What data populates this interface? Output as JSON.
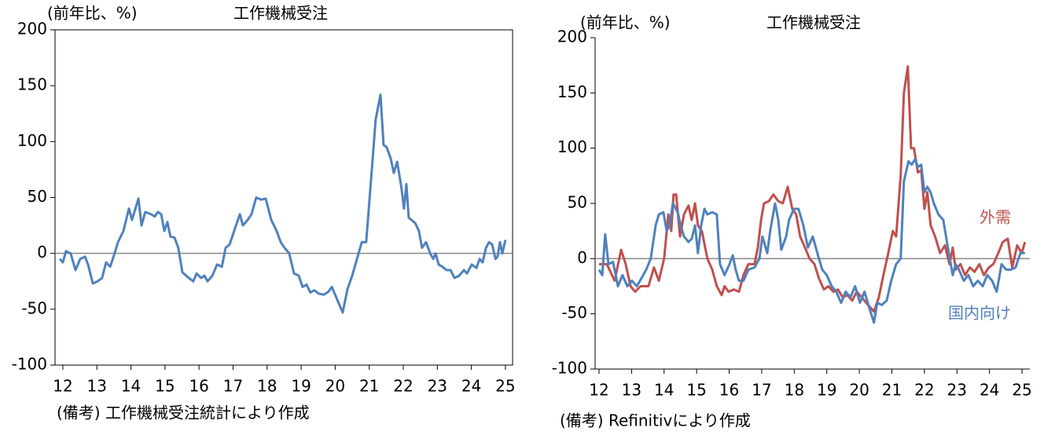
{
  "chart_data": [
    {
      "type": "line",
      "title": "工作機械受注",
      "y_label": "(前年比、%)",
      "note": "(備考) 工作機械受注統計により作成",
      "xlim": [
        11.77,
        25.21
      ],
      "xticks": [
        12,
        13,
        14,
        15,
        16,
        17,
        18,
        19,
        20,
        21,
        22,
        23,
        24,
        25
      ],
      "ylim": [
        -100,
        200
      ],
      "yticks": [
        -100,
        -50,
        0,
        50,
        100,
        150,
        200
      ],
      "frame": true,
      "series": [
        {
          "color": "#4f81bd",
          "x": [
            11.91,
            12.0,
            12.09,
            12.23,
            12.37,
            12.51,
            12.65,
            12.74,
            12.88,
            13.02,
            13.15,
            13.27,
            13.39,
            13.52,
            13.62,
            13.78,
            13.94,
            14.03,
            14.22,
            14.31,
            14.42,
            14.59,
            14.7,
            14.79,
            14.89,
            14.98,
            15.07,
            15.16,
            15.28,
            15.39,
            15.51,
            15.7,
            15.83,
            15.93,
            16.06,
            16.16,
            16.25,
            16.39,
            16.53,
            16.67,
            16.78,
            16.9,
            17.03,
            17.2,
            17.29,
            17.43,
            17.54,
            17.68,
            17.82,
            17.96,
            18.12,
            18.28,
            18.4,
            18.51,
            18.65,
            18.79,
            18.93,
            19.04,
            19.16,
            19.27,
            19.39,
            19.51,
            19.67,
            19.81,
            19.9,
            20.04,
            20.22,
            20.36,
            20.5,
            20.64,
            20.78,
            20.91,
            21.05,
            21.19,
            21.33,
            21.42,
            21.51,
            21.63,
            21.72,
            21.82,
            21.94,
            22.02,
            22.09,
            22.16,
            22.35,
            22.46,
            22.55,
            22.67,
            22.79,
            22.88,
            22.95,
            23.04,
            23.15,
            23.27,
            23.39,
            23.5,
            23.64,
            23.78,
            23.87,
            24.01,
            24.15,
            24.24,
            24.33,
            24.43,
            24.52,
            24.61,
            24.71,
            24.77,
            24.84,
            24.91,
            25.0
          ],
          "values": [
            -5,
            -8,
            2,
            0,
            -15,
            -5,
            -3,
            -10,
            -27,
            -25,
            -22,
            -8,
            -12,
            0,
            10,
            20,
            40,
            30,
            49,
            25,
            37,
            35,
            33,
            37,
            35,
            20,
            28,
            15,
            14,
            5,
            -17,
            -22,
            -25,
            -18,
            -22,
            -20,
            -25,
            -20,
            -10,
            -12,
            5,
            8,
            20,
            35,
            25,
            30,
            35,
            50,
            48,
            49,
            30,
            20,
            10,
            5,
            0,
            -18,
            -20,
            -30,
            -28,
            -35,
            -33,
            -36,
            -37,
            -34,
            -30,
            -40,
            -53,
            -32,
            -20,
            -5,
            10,
            10,
            65,
            120,
            142,
            97,
            95,
            85,
            72,
            82,
            60,
            40,
            62,
            32,
            27,
            20,
            5,
            10,
            0,
            -5,
            0,
            -10,
            -12,
            -15,
            -15,
            -22,
            -20,
            -15,
            -18,
            -10,
            -13,
            -5,
            -8,
            5,
            10,
            8,
            -5,
            -3,
            10,
            0,
            12
          ]
        }
      ]
    },
    {
      "type": "line",
      "title": "工作機械受注",
      "y_label": "(前年比、%)",
      "note": "(備考) Refinitivにより作成",
      "xlim": [
        11.88,
        25.24
      ],
      "xticks": [
        12,
        13,
        14,
        15,
        16,
        17,
        18,
        19,
        20,
        21,
        22,
        23,
        24,
        25
      ],
      "ylim": [
        -100,
        200
      ],
      "yticks": [
        -100,
        -50,
        0,
        50,
        100,
        150,
        200
      ],
      "frame": false,
      "series": [
        {
          "name": "外需",
          "color": "#c0504d",
          "x": [
            12.0,
            12.24,
            12.48,
            12.68,
            12.82,
            12.97,
            13.11,
            13.28,
            13.52,
            13.69,
            13.84,
            14.0,
            14.13,
            14.22,
            14.29,
            14.37,
            14.49,
            14.61,
            14.75,
            14.85,
            14.95,
            15.04,
            15.16,
            15.33,
            15.48,
            15.62,
            15.77,
            15.86,
            15.98,
            16.15,
            16.3,
            16.44,
            16.59,
            16.78,
            16.88,
            16.98,
            17.07,
            17.22,
            17.36,
            17.51,
            17.65,
            17.8,
            17.94,
            18.06,
            18.18,
            18.33,
            18.47,
            18.62,
            18.76,
            18.91,
            19.05,
            19.2,
            19.34,
            19.49,
            19.63,
            19.78,
            19.92,
            20.07,
            20.21,
            20.36,
            20.45,
            20.6,
            20.74,
            20.89,
            21.03,
            21.13,
            21.27,
            21.37,
            21.49,
            21.59,
            21.68,
            21.8,
            21.9,
            22.0,
            22.09,
            22.19,
            22.33,
            22.48,
            22.63,
            22.77,
            22.87,
            22.96,
            23.11,
            23.25,
            23.4,
            23.54,
            23.69,
            23.83,
            23.98,
            24.12,
            24.27,
            24.41,
            24.56,
            24.7,
            24.85,
            24.99,
            25.09
          ],
          "values": [
            -5,
            -5,
            -20,
            8,
            -5,
            -25,
            -30,
            -25,
            -25,
            -8,
            -20,
            0,
            40,
            25,
            58,
            58,
            20,
            40,
            48,
            35,
            50,
            30,
            25,
            0,
            -10,
            -25,
            -33,
            -25,
            -30,
            -28,
            -30,
            -15,
            -5,
            -5,
            10,
            35,
            50,
            52,
            58,
            52,
            50,
            65,
            45,
            40,
            20,
            10,
            0,
            -5,
            -18,
            -28,
            -25,
            -30,
            -28,
            -35,
            -33,
            -38,
            -30,
            -35,
            -40,
            -45,
            -48,
            -35,
            -15,
            5,
            25,
            20,
            75,
            150,
            174,
            100,
            100,
            78,
            80,
            45,
            60,
            30,
            20,
            5,
            12,
            -5,
            10,
            -10,
            -5,
            -15,
            -8,
            -12,
            -5,
            -15,
            -8,
            -5,
            5,
            15,
            18,
            -8,
            12,
            5,
            15
          ]
        },
        {
          "name": "国内向け",
          "color": "#4f81bd",
          "x": [
            12.0,
            12.1,
            12.19,
            12.29,
            12.43,
            12.58,
            12.72,
            12.87,
            13.01,
            13.16,
            13.3,
            13.45,
            13.59,
            13.74,
            13.84,
            13.98,
            14.08,
            14.17,
            14.27,
            14.42,
            14.51,
            14.61,
            14.75,
            14.85,
            14.95,
            15.04,
            15.14,
            15.24,
            15.33,
            15.48,
            15.62,
            15.72,
            15.86,
            16.01,
            16.11,
            16.2,
            16.3,
            16.44,
            16.59,
            16.78,
            16.93,
            17.02,
            17.17,
            17.26,
            17.41,
            17.51,
            17.6,
            17.75,
            17.84,
            17.99,
            18.13,
            18.28,
            18.42,
            18.57,
            18.71,
            18.86,
            19.0,
            19.15,
            19.29,
            19.44,
            19.58,
            19.73,
            19.87,
            20.02,
            20.16,
            20.31,
            20.45,
            20.55,
            20.69,
            20.84,
            20.98,
            21.13,
            21.27,
            21.37,
            21.51,
            21.61,
            21.71,
            21.8,
            21.9,
            22.0,
            22.09,
            22.19,
            22.29,
            22.43,
            22.58,
            22.72,
            22.87,
            22.96,
            23.06,
            23.21,
            23.35,
            23.5,
            23.64,
            23.79,
            23.93,
            24.08,
            24.22,
            24.37,
            24.51,
            24.66,
            24.8,
            24.95,
            25.09
          ],
          "values": [
            -10,
            -15,
            22,
            -5,
            -3,
            -25,
            -15,
            -25,
            -20,
            -25,
            -18,
            -10,
            0,
            30,
            40,
            42,
            25,
            30,
            50,
            42,
            30,
            20,
            15,
            18,
            30,
            5,
            30,
            45,
            40,
            42,
            40,
            -5,
            -15,
            -5,
            3,
            -10,
            -20,
            -20,
            -10,
            -8,
            0,
            20,
            5,
            25,
            50,
            35,
            8,
            20,
            35,
            45,
            45,
            30,
            10,
            20,
            5,
            -10,
            -15,
            -25,
            -30,
            -40,
            -30,
            -35,
            -25,
            -40,
            -30,
            -45,
            -58,
            -40,
            -42,
            -38,
            -20,
            -5,
            0,
            70,
            88,
            85,
            90,
            83,
            85,
            60,
            65,
            60,
            50,
            40,
            35,
            10,
            -15,
            -5,
            -10,
            -20,
            -15,
            -25,
            -20,
            -25,
            -15,
            -20,
            -30,
            -5,
            -10,
            -10,
            -8,
            5,
            5
          ]
        }
      ]
    }
  ]
}
